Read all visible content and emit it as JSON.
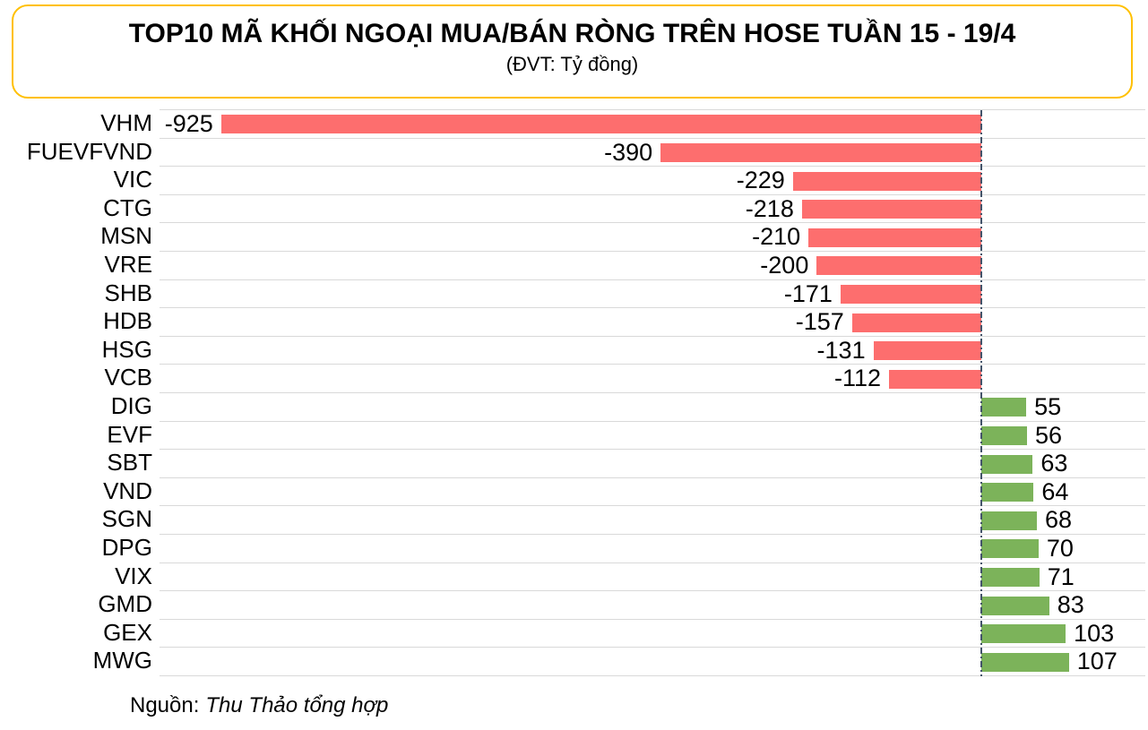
{
  "header": {
    "title": "TOP10 MÃ KHỐI NGOẠI MUA/BÁN RÒNG TRÊN HOSE TUẦN 15 - 19/4",
    "subtitle": "(ĐVT: Tỷ đồng)"
  },
  "source": {
    "label": "Nguồn:",
    "name": "Thu Thảo tổng hợp"
  },
  "theme": {
    "accent_border": "#FFC000",
    "negative_bar": "#FD6E6E",
    "positive_bar": "#7CB35A",
    "gridline": "#D9D9D9",
    "zero_axis": "#44546A",
    "text": "#000000"
  },
  "chart_data": {
    "type": "bar",
    "orientation": "horizontal",
    "title": "TOP10 MÃ KHỐI NGOẠI MUA/BÁN RÒNG TRÊN HOSE TUẦN 15 - 19/4",
    "unit": "Tỷ đồng",
    "categories": [
      "VHM",
      "FUEVFVND",
      "VIC",
      "CTG",
      "MSN",
      "VRE",
      "SHB",
      "HDB",
      "HSG",
      "VCB",
      "DIG",
      "EVF",
      "SBT",
      "VND",
      "SGN",
      "DPG",
      "VIX",
      "GMD",
      "GEX",
      "MWG"
    ],
    "values": [
      -925,
      -390,
      -229,
      -218,
      -210,
      -200,
      -171,
      -157,
      -131,
      -112,
      55,
      56,
      63,
      64,
      68,
      70,
      71,
      83,
      103,
      107
    ],
    "xlim": [
      -1000,
      200
    ],
    "grid": true,
    "legend": false,
    "data_labels": true,
    "negative_color": "#FD6E6E",
    "positive_color": "#7CB35A"
  }
}
